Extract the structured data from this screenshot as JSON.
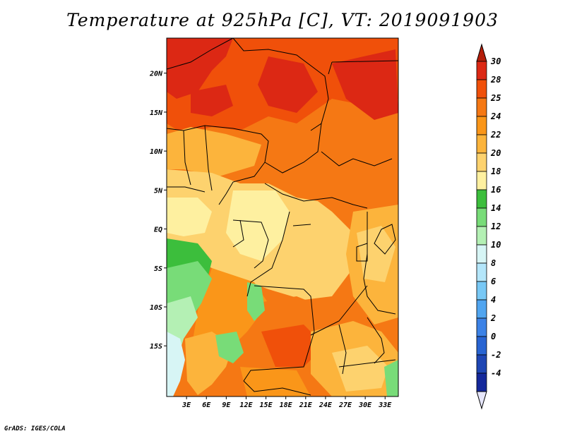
{
  "header": {
    "title": "Temperature at 925hPa [C], VT: 2019091903"
  },
  "footer": {
    "credit": "GrADS: IGES/COLA"
  },
  "map": {
    "lat_range": [
      -21.5,
      24.5
    ],
    "lon_range": [
      0,
      35
    ],
    "lat_ticks": [
      {
        "value": 20,
        "label": "20N"
      },
      {
        "value": 15,
        "label": "15N"
      },
      {
        "value": 10,
        "label": "10N"
      },
      {
        "value": 5,
        "label": "5N"
      },
      {
        "value": 0,
        "label": "EQ"
      },
      {
        "value": -5,
        "label": "5S"
      },
      {
        "value": -10,
        "label": "10S"
      },
      {
        "value": -15,
        "label": "15S"
      }
    ],
    "lon_ticks": [
      {
        "value": 3,
        "label": "3E"
      },
      {
        "value": 6,
        "label": "6E"
      },
      {
        "value": 9,
        "label": "9E"
      },
      {
        "value": 12,
        "label": "12E"
      },
      {
        "value": 15,
        "label": "15E"
      },
      {
        "value": 18,
        "label": "18E"
      },
      {
        "value": 21,
        "label": "21E"
      },
      {
        "value": 24,
        "label": "24E"
      },
      {
        "value": 27,
        "label": "27E"
      },
      {
        "value": 30,
        "label": "30E"
      },
      {
        "value": 33,
        "label": "33E"
      }
    ]
  },
  "colorbar": {
    "levels": [
      {
        "label": "30",
        "color": "#dc2814"
      },
      {
        "label": "28",
        "color": "#f0500a"
      },
      {
        "label": "25",
        "color": "#f57814"
      },
      {
        "label": "24",
        "color": "#fa9619"
      },
      {
        "label": "22",
        "color": "#fcb43c"
      },
      {
        "label": "20",
        "color": "#fdd26e"
      },
      {
        "label": "18",
        "color": "#fef0a0"
      },
      {
        "label": "16",
        "color": "#3cbe3c"
      },
      {
        "label": "14",
        "color": "#78dc78"
      },
      {
        "label": "12",
        "color": "#b4f0b4"
      },
      {
        "label": "10",
        "color": "#d7f5f5"
      },
      {
        "label": "8",
        "color": "#b4e6fa"
      },
      {
        "label": "6",
        "color": "#78c8f5"
      },
      {
        "label": "4",
        "color": "#50a5f0"
      },
      {
        "label": "2",
        "color": "#3c82e6"
      },
      {
        "label": "0",
        "color": "#2864d2"
      },
      {
        "label": "-2",
        "color": "#1e46b4"
      },
      {
        "label": "-4",
        "color": "#14289b"
      }
    ],
    "top_color": "#b41e0a",
    "bottom_color": "#e6e6fa"
  }
}
